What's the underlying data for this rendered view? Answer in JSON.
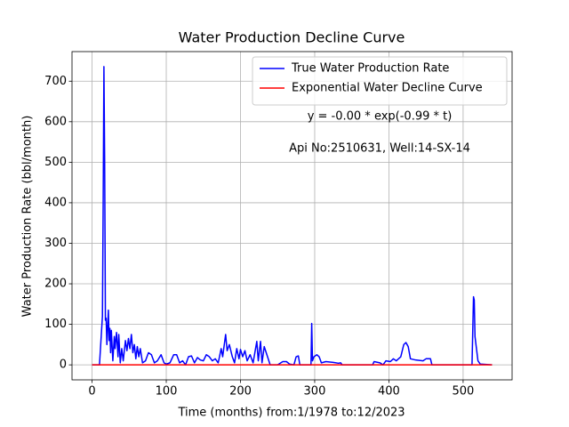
{
  "chart_data": {
    "type": "line",
    "title": "Water Production Decline Curve",
    "x_label": "Time (months) from:1/1978 to:12/2023",
    "y_label": "Water Production Rate (bbl/month)",
    "annotations": [
      "y = -0.00 * exp(-0.99 * t)",
      "Api No:2510631, Well:14-SX-14"
    ],
    "xlim": [
      -27,
      566
    ],
    "ylim": [
      -37,
      773
    ],
    "xticks": [
      0,
      100,
      200,
      300,
      400,
      500
    ],
    "yticks": [
      0,
      100,
      200,
      300,
      400,
      500,
      600,
      700
    ],
    "grid": true,
    "legend": "upper right",
    "series": [
      {
        "name": "True Water Production Rate",
        "color": "#0000ff",
        "x": [
          0,
          10,
          12,
          14,
          15,
          16,
          17,
          18,
          19,
          20,
          22,
          23,
          24,
          25,
          26,
          28,
          30,
          31,
          33,
          35,
          36,
          38,
          40,
          42,
          45,
          47,
          49,
          51,
          53,
          55,
          57,
          59,
          61,
          63,
          65,
          68,
          72,
          76,
          80,
          84,
          88,
          93,
          97,
          100,
          105,
          110,
          114,
          118,
          122,
          126,
          130,
          134,
          138,
          142,
          146,
          150,
          154,
          158,
          162,
          166,
          170,
          174,
          176,
          180,
          182,
          185,
          189,
          192,
          195,
          198,
          200,
          203,
          206,
          209,
          213,
          217,
          222,
          224,
          227,
          229,
          232,
          240,
          250,
          257,
          262,
          266,
          272,
          275,
          278,
          280,
          295,
          296,
          297,
          299,
          303,
          306,
          309,
          315,
          325,
          332,
          335,
          337,
          378,
          380,
          388,
          392,
          396,
          402,
          406,
          410,
          416,
          420,
          423,
          426,
          429,
          436,
          446,
          450,
          456,
          458,
          512,
          514,
          515,
          516,
          518,
          520,
          523,
          539
        ],
        "values": [
          0,
          0,
          60,
          120,
          400,
          736,
          500,
          110,
          115,
          50,
          135,
          60,
          90,
          30,
          85,
          10,
          70,
          40,
          80,
          20,
          75,
          5,
          40,
          10,
          60,
          35,
          65,
          40,
          75,
          30,
          50,
          15,
          45,
          20,
          40,
          5,
          10,
          30,
          25,
          5,
          10,
          25,
          5,
          2,
          5,
          25,
          25,
          5,
          10,
          0,
          20,
          22,
          5,
          18,
          12,
          10,
          25,
          20,
          10,
          15,
          5,
          40,
          20,
          75,
          35,
          50,
          20,
          5,
          40,
          15,
          38,
          20,
          35,
          10,
          25,
          5,
          58,
          10,
          58,
          5,
          45,
          0,
          0,
          8,
          8,
          2,
          0,
          20,
          22,
          0,
          0,
          102,
          10,
          20,
          25,
          20,
          5,
          8,
          6,
          4,
          5,
          0,
          0,
          8,
          5,
          0,
          10,
          8,
          15,
          10,
          20,
          50,
          55,
          45,
          15,
          12,
          10,
          15,
          15,
          0,
          0,
          168,
          160,
          70,
          40,
          10,
          2,
          0
        ]
      },
      {
        "name": "Exponential Water Decline Curve",
        "color": "#ff0000",
        "x": [
          0,
          100,
          200,
          300,
          400,
          500,
          539
        ],
        "values": [
          0,
          0,
          0,
          0,
          0,
          0,
          0
        ]
      }
    ]
  }
}
